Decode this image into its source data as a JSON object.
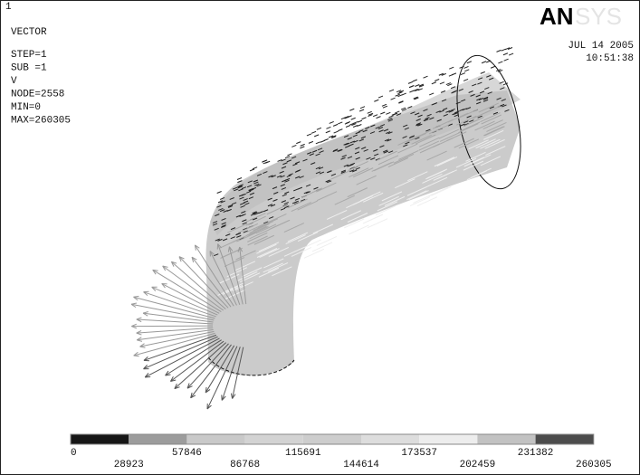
{
  "header": {
    "window_number": "1",
    "plot_type": "VECTOR",
    "info": [
      "STEP=1",
      "SUB =1",
      "V",
      "NODE=2558",
      "MIN=0",
      "MAX=260305"
    ]
  },
  "logo": {
    "strong": "AN",
    "faint": "SYS"
  },
  "timestamp": {
    "date": "JUL 14 2005",
    "time": "10:51:38"
  },
  "legend": {
    "colors": [
      "#161616",
      "#9c9c9c",
      "#c9c9c9",
      "#d3d3d3",
      "#cdcdcd",
      "#dddddd",
      "#ededed",
      "#c2c2c2",
      "#4c4c4c"
    ],
    "labels": [
      "0",
      "28923",
      "57846",
      "86768",
      "115691",
      "144614",
      "173537",
      "202459",
      "231382",
      "260305"
    ]
  }
}
